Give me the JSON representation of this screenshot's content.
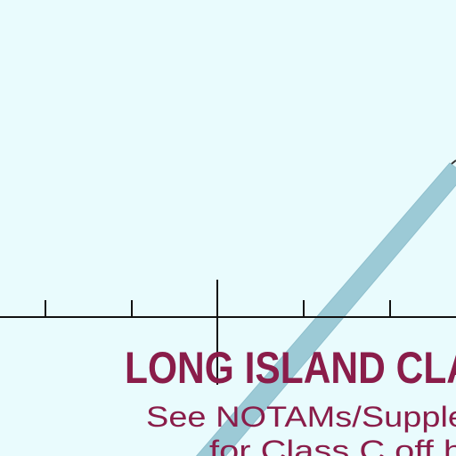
{
  "map": {
    "airspace_title": "LONG ISLAND CLA",
    "note_line_1": "See NOTAMs/Supple",
    "note_line_2": "for Class C off h",
    "colors": {
      "background": "#e9fbfd",
      "airspace_text": "#8a1d4a",
      "corridor": "#9ccad6",
      "scale_line": "#111111"
    }
  }
}
